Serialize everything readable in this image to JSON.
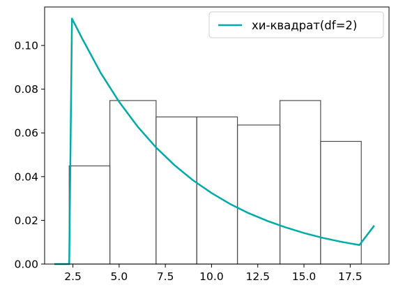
{
  "chart_data": {
    "type": "bar",
    "title": "",
    "xlabel": "",
    "ylabel": "",
    "xlim": [
      0.97,
      19.6
    ],
    "ylim": [
      0.0,
      0.1176
    ],
    "x_ticks": [
      2.5,
      5.0,
      7.5,
      10.0,
      12.5,
      15.0,
      17.5
    ],
    "x_tick_labels": [
      "2.5",
      "5.0",
      "7.5",
      "10.0",
      "12.5",
      "15.0",
      "17.5"
    ],
    "y_ticks": [
      0.0,
      0.02,
      0.04,
      0.06,
      0.08,
      0.1
    ],
    "y_tick_labels": [
      "0.00",
      "0.02",
      "0.04",
      "0.06",
      "0.08",
      "0.10"
    ],
    "histogram": {
      "bin_edges": [
        2.3,
        4.5,
        7.0,
        9.2,
        11.4,
        13.7,
        15.9,
        18.1
      ],
      "values": [
        0.0449,
        0.0748,
        0.0673,
        0.0673,
        0.0636,
        0.0748,
        0.0561
      ],
      "color": "#4d4d4d"
    },
    "series": [
      {
        "name": "хи-квадрат(df=2)",
        "type": "line",
        "color": "#00aaaa",
        "x": [
          1.5,
          2.2,
          2.3,
          2.45,
          3.0,
          4.0,
          5.0,
          6.0,
          7.0,
          8.0,
          9.0,
          10.0,
          11.0,
          12.0,
          13.0,
          14.0,
          15.0,
          16.0,
          17.0,
          18.0,
          18.8
        ],
        "y": [
          0.0,
          0.0,
          0.0,
          0.1123,
          0.1032,
          0.0875,
          0.0742,
          0.0629,
          0.0533,
          0.0452,
          0.0383,
          0.0325,
          0.0275,
          0.0233,
          0.0198,
          0.0168,
          0.0142,
          0.012,
          0.0102,
          0.0087,
          0.0176
        ]
      }
    ],
    "legend": {
      "position": "top-right"
    }
  }
}
